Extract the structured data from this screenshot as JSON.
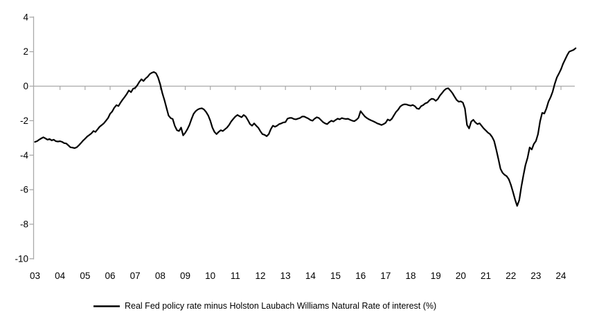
{
  "chart_data": {
    "type": "line",
    "legend": "Real Fed policy rate minus Holston Laubach Williams Natural Rate of interest (%)",
    "x_tick_labels": [
      "03",
      "04",
      "05",
      "06",
      "07",
      "08",
      "09",
      "10",
      "11",
      "12",
      "13",
      "14",
      "15",
      "16",
      "17",
      "18",
      "19",
      "20",
      "21",
      "22",
      "23",
      "24"
    ],
    "x_start": "2003-01",
    "x_end": "2024-08",
    "frequency": "monthly",
    "y_ticks": [
      4,
      2,
      0,
      -2,
      -4,
      -6,
      -8,
      -10
    ],
    "ylim": [
      -10,
      4
    ],
    "grid": "zero-line-only",
    "legend_position": "bottom",
    "line_color": "#000000",
    "axis_color": "#a9a9a9",
    "text_color": "#000000",
    "series": [
      {
        "name": "Real Fed policy rate minus Holston Laubach Williams Natural Rate of interest (%)",
        "values": [
          -3.23,
          -3.19,
          -3.1,
          -3.03,
          -2.96,
          -3.03,
          -3.1,
          -3.06,
          -3.14,
          -3.1,
          -3.19,
          -3.21,
          -3.19,
          -3.23,
          -3.3,
          -3.32,
          -3.43,
          -3.54,
          -3.56,
          -3.59,
          -3.54,
          -3.43,
          -3.3,
          -3.16,
          -3.05,
          -2.92,
          -2.83,
          -2.74,
          -2.6,
          -2.65,
          -2.5,
          -2.35,
          -2.25,
          -2.15,
          -2.0,
          -1.85,
          -1.6,
          -1.47,
          -1.25,
          -1.1,
          -1.15,
          -0.95,
          -0.78,
          -0.62,
          -0.45,
          -0.25,
          -0.35,
          -0.15,
          -0.1,
          0.05,
          0.25,
          0.4,
          0.3,
          0.45,
          0.55,
          0.7,
          0.78,
          0.82,
          0.75,
          0.5,
          0.1,
          -0.4,
          -0.8,
          -1.25,
          -1.7,
          -1.85,
          -1.9,
          -2.3,
          -2.55,
          -2.6,
          -2.4,
          -2.85,
          -2.7,
          -2.5,
          -2.25,
          -1.9,
          -1.6,
          -1.45,
          -1.35,
          -1.3,
          -1.28,
          -1.35,
          -1.5,
          -1.7,
          -2.0,
          -2.4,
          -2.65,
          -2.78,
          -2.65,
          -2.55,
          -2.6,
          -2.5,
          -2.4,
          -2.25,
          -2.05,
          -1.9,
          -1.76,
          -1.67,
          -1.74,
          -1.8,
          -1.67,
          -1.76,
          -1.96,
          -2.2,
          -2.29,
          -2.16,
          -2.29,
          -2.41,
          -2.61,
          -2.78,
          -2.82,
          -2.9,
          -2.78,
          -2.49,
          -2.29,
          -2.35,
          -2.29,
          -2.2,
          -2.16,
          -2.1,
          -2.08,
          -1.88,
          -1.84,
          -1.84,
          -1.9,
          -1.92,
          -1.88,
          -1.84,
          -1.76,
          -1.76,
          -1.82,
          -1.88,
          -1.96,
          -2.0,
          -1.88,
          -1.8,
          -1.84,
          -1.96,
          -2.08,
          -2.16,
          -2.2,
          -2.08,
          -2.0,
          -2.05,
          -1.96,
          -1.88,
          -1.92,
          -1.85,
          -1.88,
          -1.9,
          -1.89,
          -1.95,
          -2.0,
          -2.03,
          -1.95,
          -1.83,
          -1.45,
          -1.6,
          -1.75,
          -1.85,
          -1.92,
          -1.98,
          -2.03,
          -2.09,
          -2.16,
          -2.2,
          -2.25,
          -2.2,
          -2.12,
          -1.93,
          -1.99,
          -1.89,
          -1.69,
          -1.49,
          -1.36,
          -1.18,
          -1.09,
          -1.05,
          -1.06,
          -1.1,
          -1.13,
          -1.09,
          -1.16,
          -1.29,
          -1.32,
          -1.16,
          -1.1,
          -1.0,
          -0.95,
          -0.82,
          -0.73,
          -0.75,
          -0.85,
          -0.75,
          -0.55,
          -0.4,
          -0.25,
          -0.15,
          -0.12,
          -0.25,
          -0.4,
          -0.6,
          -0.8,
          -0.9,
          -0.88,
          -0.95,
          -1.3,
          -2.25,
          -2.45,
          -2.05,
          -1.95,
          -2.1,
          -2.2,
          -2.15,
          -2.3,
          -2.45,
          -2.57,
          -2.69,
          -2.78,
          -2.94,
          -3.18,
          -3.67,
          -4.2,
          -4.78,
          -5.02,
          -5.14,
          -5.22,
          -5.39,
          -5.71,
          -6.12,
          -6.57,
          -6.94,
          -6.61,
          -5.84,
          -5.18,
          -4.57,
          -4.16,
          -3.55,
          -3.67,
          -3.35,
          -3.18,
          -2.78,
          -2.04,
          -1.55,
          -1.59,
          -1.3,
          -0.9,
          -0.65,
          -0.33,
          0.12,
          0.49,
          0.73,
          0.98,
          1.3,
          1.55,
          1.8,
          2.0,
          2.05,
          2.1,
          2.2
        ]
      }
    ]
  }
}
